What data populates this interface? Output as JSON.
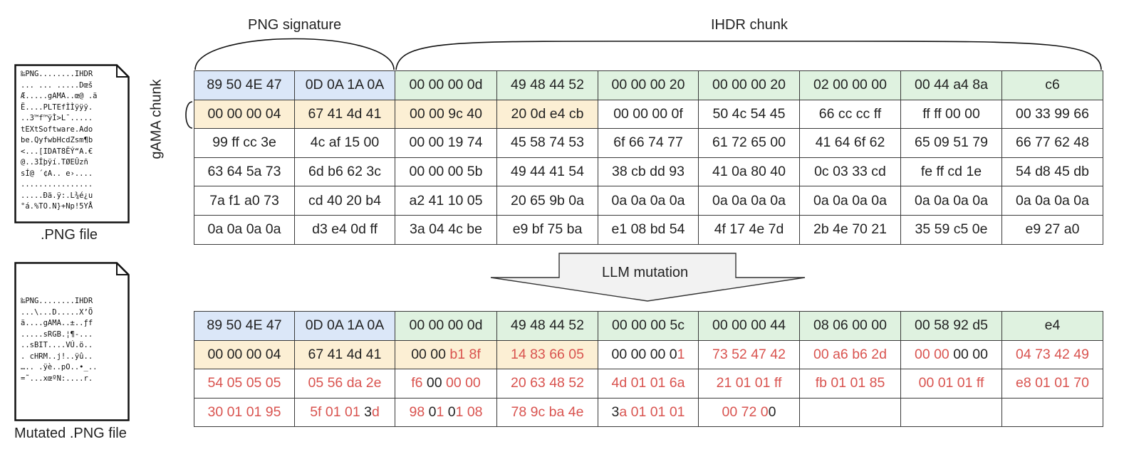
{
  "labels": {
    "png_signature": "PNG signature",
    "ihdr_chunk": "IHDR chunk",
    "gama_chunk": "gAMA chunk",
    "llm_mutation": "LLM mutation",
    "png_file": ".PNG file",
    "mutated_png_file": "Mutated .PNG file"
  },
  "original_file_text": [
    "‰PNG........IHDR",
    "... ... .....Dœš",
    "Æ.....gAMA..œ@ .ä",
    "Ë....PLTEfÌÌÿÿÿ.",
    "..3™f™ÿÌ>L¯.....",
    "tEXtSoftware.Ado",
    "be.QyfwbHcdZsm¶b",
    "<...[IDAT8ËÝ“A.€",
    "@..3Íþÿí.TØEÛzñ",
    "sÍ@ ´¢A.. e›....",
    "................",
    ".....Ðä.ÿ:.L¾é¿u",
    "°á.%TO.N}+Np!5YÅ"
  ],
  "mutated_file_text": [
    "‰PNG........IHDR",
    "...\\...D.....X’Õ",
    "ä....gAMA..±..ƒf",
    ".....sRGB.¦¶-...",
    "..sBIT....VÚ.ö..",
    ". cHRM..j!..ÿû..",
    "….. .ÿè..pO..•_..",
    "=˜...xœºN:....r."
  ],
  "colors": {
    "signature": "#dbe7f8",
    "ihdr": "#dff2e0",
    "gama": "#fcefd4",
    "mutated_text": "#d9534f",
    "border": "#3a3a3a"
  },
  "original_table": [
    [
      {
        "c": "sig",
        "t": [
          {
            "s": "89 50 4E 47"
          }
        ]
      },
      {
        "c": "sig",
        "t": [
          {
            "s": "0D 0A 1A 0A"
          }
        ]
      },
      {
        "c": "ihdr",
        "t": [
          {
            "s": "00 00 00 0d"
          }
        ]
      },
      {
        "c": "ihdr",
        "t": [
          {
            "s": "49 48 44 52"
          }
        ]
      },
      {
        "c": "ihdr",
        "t": [
          {
            "s": "00 00 00 20"
          }
        ]
      },
      {
        "c": "ihdr",
        "t": [
          {
            "s": "00 00 00 20"
          }
        ]
      },
      {
        "c": "ihdr",
        "t": [
          {
            "s": "02 00 00 00"
          }
        ]
      },
      {
        "c": "ihdr",
        "t": [
          {
            "s": "00 44 a4 8a"
          }
        ]
      },
      {
        "c": "ihdr",
        "t": [
          {
            "s": "c6"
          }
        ]
      }
    ],
    [
      {
        "c": "gama",
        "t": [
          {
            "s": "00 00 00 04"
          }
        ]
      },
      {
        "c": "gama",
        "t": [
          {
            "s": "67 41 4d 41"
          }
        ]
      },
      {
        "c": "gama",
        "t": [
          {
            "s": "00 00 9c 40"
          }
        ]
      },
      {
        "c": "gama",
        "t": [
          {
            "s": "20 0d e4 cb"
          }
        ]
      },
      {
        "c": "",
        "t": [
          {
            "s": "00 00 00 0f"
          }
        ]
      },
      {
        "c": "",
        "t": [
          {
            "s": "50 4c 54 45"
          }
        ]
      },
      {
        "c": "",
        "t": [
          {
            "s": "66 cc cc ff"
          }
        ]
      },
      {
        "c": "",
        "t": [
          {
            "s": "ff ff 00 00"
          }
        ]
      },
      {
        "c": "",
        "t": [
          {
            "s": "00 33 99 66"
          }
        ]
      }
    ],
    [
      {
        "c": "",
        "t": [
          {
            "s": "99 ff cc 3e"
          }
        ]
      },
      {
        "c": "",
        "t": [
          {
            "s": "4c af 15 00"
          }
        ]
      },
      {
        "c": "",
        "t": [
          {
            "s": "00 00 19 74"
          }
        ]
      },
      {
        "c": "",
        "t": [
          {
            "s": "45 58 74 53"
          }
        ]
      },
      {
        "c": "",
        "t": [
          {
            "s": "6f 66 74 77"
          }
        ]
      },
      {
        "c": "",
        "t": [
          {
            "s": "61 72 65 00"
          }
        ]
      },
      {
        "c": "",
        "t": [
          {
            "s": "41 64 6f 62"
          }
        ]
      },
      {
        "c": "",
        "t": [
          {
            "s": "65 09 51 79"
          }
        ]
      },
      {
        "c": "",
        "t": [
          {
            "s": "66 77 62 48"
          }
        ]
      }
    ],
    [
      {
        "c": "",
        "t": [
          {
            "s": "63 64 5a 73"
          }
        ]
      },
      {
        "c": "",
        "t": [
          {
            "s": "6d b6 62 3c"
          }
        ]
      },
      {
        "c": "",
        "t": [
          {
            "s": "00 00 00 5b"
          }
        ]
      },
      {
        "c": "",
        "t": [
          {
            "s": "49 44 41 54"
          }
        ]
      },
      {
        "c": "",
        "t": [
          {
            "s": "38 cb dd 93"
          }
        ]
      },
      {
        "c": "",
        "t": [
          {
            "s": "41 0a 80 40"
          }
        ]
      },
      {
        "c": "",
        "t": [
          {
            "s": "0c 03 33 cd"
          }
        ]
      },
      {
        "c": "",
        "t": [
          {
            "s": "fe ff cd 1e"
          }
        ]
      },
      {
        "c": "",
        "t": [
          {
            "s": "54 d8 45 db"
          }
        ]
      }
    ],
    [
      {
        "c": "",
        "t": [
          {
            "s": "7a f1 a0 73"
          }
        ]
      },
      {
        "c": "",
        "t": [
          {
            "s": "cd 40 20 b4"
          }
        ]
      },
      {
        "c": "",
        "t": [
          {
            "s": "a2 41 10 05"
          }
        ]
      },
      {
        "c": "",
        "t": [
          {
            "s": "20 65 9b 0a"
          }
        ]
      },
      {
        "c": "",
        "t": [
          {
            "s": "0a 0a 0a 0a"
          }
        ]
      },
      {
        "c": "",
        "t": [
          {
            "s": "0a 0a 0a 0a"
          }
        ]
      },
      {
        "c": "",
        "t": [
          {
            "s": "0a 0a 0a 0a"
          }
        ]
      },
      {
        "c": "",
        "t": [
          {
            "s": "0a 0a 0a 0a"
          }
        ]
      },
      {
        "c": "",
        "t": [
          {
            "s": "0a 0a 0a 0a"
          }
        ]
      }
    ],
    [
      {
        "c": "",
        "t": [
          {
            "s": "0a 0a 0a 0a"
          }
        ]
      },
      {
        "c": "",
        "t": [
          {
            "s": "d3 e4 0d ff"
          }
        ]
      },
      {
        "c": "",
        "t": [
          {
            "s": "3a 04 4c be"
          }
        ]
      },
      {
        "c": "",
        "t": [
          {
            "s": "e9 bf 75 ba"
          }
        ]
      },
      {
        "c": "",
        "t": [
          {
            "s": "e1 08 bd 54"
          }
        ]
      },
      {
        "c": "",
        "t": [
          {
            "s": "4f 17 4e 7d"
          }
        ]
      },
      {
        "c": "",
        "t": [
          {
            "s": "2b 4e 70 21"
          }
        ]
      },
      {
        "c": "",
        "t": [
          {
            "s": "35 59 c5 0e"
          }
        ]
      },
      {
        "c": "",
        "t": [
          {
            "s": "e9 27 a0"
          }
        ]
      }
    ]
  ],
  "mutated_table": [
    [
      {
        "c": "sig",
        "t": [
          {
            "s": "89 50 4E 47"
          }
        ]
      },
      {
        "c": "sig",
        "t": [
          {
            "s": "0D 0A 1A 0A"
          }
        ]
      },
      {
        "c": "ihdr",
        "t": [
          {
            "s": "00 00 00 0d"
          }
        ]
      },
      {
        "c": "ihdr",
        "t": [
          {
            "s": "49 48 44 52"
          }
        ]
      },
      {
        "c": "ihdr",
        "t": [
          {
            "s": "00 00 00 5c"
          }
        ]
      },
      {
        "c": "ihdr",
        "t": [
          {
            "s": "00 00 00 44"
          }
        ]
      },
      {
        "c": "ihdr",
        "t": [
          {
            "s": "08 06 00 00"
          }
        ]
      },
      {
        "c": "ihdr",
        "t": [
          {
            "s": "00 58 92 d5"
          }
        ]
      },
      {
        "c": "ihdr",
        "t": [
          {
            "s": "e4"
          }
        ]
      }
    ],
    [
      {
        "c": "gama",
        "t": [
          {
            "s": "00 00 00 04"
          }
        ]
      },
      {
        "c": "gama",
        "t": [
          {
            "s": "67 41 4d 41"
          }
        ]
      },
      {
        "c": "gama",
        "t": [
          {
            "s": "00 00 "
          },
          {
            "s": "b1 8f",
            "m": true
          }
        ]
      },
      {
        "c": "gama",
        "t": [
          {
            "s": "14 83 66 05",
            "m": true
          }
        ]
      },
      {
        "c": "",
        "t": [
          {
            "s": "00 00 00 0"
          },
          {
            "s": "1",
            "m": true
          }
        ]
      },
      {
        "c": "",
        "t": [
          {
            "s": "73 52 47 42",
            "m": true
          }
        ]
      },
      {
        "c": "",
        "t": [
          {
            "s": "00 a6 b6 2d",
            "m": true
          }
        ]
      },
      {
        "c": "",
        "t": [
          {
            "s": "00 00 ",
            "m": true
          },
          {
            "s": "00 00"
          }
        ]
      },
      {
        "c": "",
        "t": [
          {
            "s": "04 73 42 49",
            "m": true
          }
        ]
      }
    ],
    [
      {
        "c": "",
        "t": [
          {
            "s": "54 05 05 05",
            "m": true
          }
        ]
      },
      {
        "c": "",
        "t": [
          {
            "s": "05 56 da 2e",
            "m": true
          }
        ]
      },
      {
        "c": "",
        "t": [
          {
            "s": "f6 ",
            "m": true
          },
          {
            "s": "00 "
          },
          {
            "s": "00 00",
            "m": true
          }
        ]
      },
      {
        "c": "",
        "t": [
          {
            "s": "20 63 48 52",
            "m": true
          }
        ]
      },
      {
        "c": "",
        "t": [
          {
            "s": "4d 01 01 6a",
            "m": true
          }
        ]
      },
      {
        "c": "",
        "t": [
          {
            "s": "21 01 01 ff",
            "m": true
          }
        ]
      },
      {
        "c": "",
        "t": [
          {
            "s": "fb 01 01 85",
            "m": true
          }
        ]
      },
      {
        "c": "",
        "t": [
          {
            "s": "00 01 01 ff",
            "m": true
          }
        ]
      },
      {
        "c": "",
        "t": [
          {
            "s": "e8 01 01 70",
            "m": true
          }
        ]
      }
    ],
    [
      {
        "c": "",
        "t": [
          {
            "s": "30 01 01 95",
            "m": true
          }
        ]
      },
      {
        "c": "",
        "t": [
          {
            "s": "5f 01 01 ",
            "m": true
          },
          {
            "s": "3"
          },
          {
            "s": "d",
            "m": true
          }
        ]
      },
      {
        "c": "",
        "t": [
          {
            "s": "98 ",
            "m": true
          },
          {
            "s": "0"
          },
          {
            "s": "1 ",
            "m": true
          },
          {
            "s": "0"
          },
          {
            "s": "1 08",
            "m": true
          }
        ]
      },
      {
        "c": "",
        "t": [
          {
            "s": "78 9c ba 4e",
            "m": true
          }
        ]
      },
      {
        "c": "",
        "t": [
          {
            "s": "3"
          },
          {
            "s": "a 01 01 01",
            "m": true
          }
        ]
      },
      {
        "c": "",
        "t": [
          {
            "s": "00 72 0",
            "m": true
          },
          {
            "s": "0"
          }
        ]
      },
      {
        "c": "",
        "t": []
      },
      {
        "c": "",
        "t": []
      },
      {
        "c": "",
        "t": []
      }
    ]
  ]
}
